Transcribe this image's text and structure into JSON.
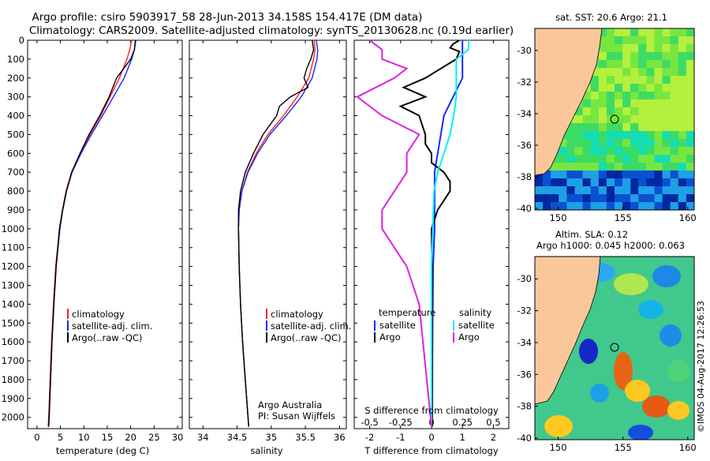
{
  "header": {
    "title_line1": "Argo profile: csiro 5903917_58 28-Jun-2013 34.158S 154.417E (DM data)",
    "title_line2": "Climatology: CARS2009. Satellite-adjusted climatology: synTS_20130628.nc (0.19d earlier)"
  },
  "footer": {
    "watermark": "©IMOS 04-Aug-2017 12:26:53",
    "credit_line1": "Argo Australia",
    "credit_line2": "PI: Susan Wijffels"
  },
  "colors": {
    "climatology": "#ff2020",
    "satellite": "#1428ff",
    "argo": "#000000",
    "salinity_satellite": "#00f0f0",
    "salinity_argo": "#e020e0",
    "land": "#f9c79a"
  },
  "chart_data": [
    {
      "id": "temperature",
      "type": "line",
      "xlabel": "temperature (deg C)",
      "ylabel": "",
      "xlim": [
        -2,
        31
      ],
      "ylim": [
        2060,
        0
      ],
      "xticks": [
        0,
        5,
        10,
        15,
        20,
        25,
        30
      ],
      "yticks": [
        0,
        100,
        200,
        300,
        400,
        500,
        600,
        700,
        800,
        900,
        1000,
        1100,
        1200,
        1300,
        1400,
        1500,
        1600,
        1700,
        1800,
        1900,
        2000
      ],
      "legend": [
        "climatology",
        "satellite-adj. clim.",
        "Argo(..raw -QC)"
      ],
      "series": [
        {
          "name": "climatology",
          "depth": [
            0,
            50,
            100,
            200,
            300,
            400,
            500,
            600,
            700,
            800,
            900,
            1000,
            1200,
            1400,
            1600,
            1800,
            2000,
            2050
          ],
          "values": [
            20.2,
            19.8,
            19.2,
            17.6,
            15.6,
            13.6,
            11.3,
            9.2,
            7.4,
            6.2,
            5.4,
            4.8,
            4.0,
            3.5,
            3.1,
            2.8,
            2.5,
            2.4
          ]
        },
        {
          "name": "satellite-adj. clim.",
          "depth": [
            0,
            50,
            100,
            200,
            300,
            400,
            500,
            600,
            700,
            800,
            900,
            1000,
            1200,
            1400,
            1600,
            1800,
            2000,
            2050
          ],
          "values": [
            21.1,
            20.8,
            20.2,
            18.6,
            16.3,
            14.0,
            11.6,
            9.4,
            7.5,
            6.3,
            5.5,
            4.9,
            4.1,
            3.6,
            3.2,
            2.9,
            2.6,
            2.5
          ]
        },
        {
          "name": "Argo(..raw -QC)",
          "depth": [
            0,
            50,
            100,
            200,
            300,
            400,
            500,
            600,
            700,
            800,
            900,
            1000,
            1200,
            1400,
            1600,
            1800,
            2000,
            2050
          ],
          "values": [
            21.0,
            20.8,
            20.0,
            17.0,
            15.4,
            13.4,
            11.1,
            9.2,
            7.4,
            6.3,
            5.5,
            4.8,
            4.1,
            3.6,
            3.2,
            2.9,
            2.6,
            2.5
          ]
        }
      ]
    },
    {
      "id": "salinity",
      "type": "line",
      "xlabel": "salinity",
      "xlim": [
        33.8,
        36.1
      ],
      "ylim": [
        2060,
        0
      ],
      "xticks": [
        34,
        34.5,
        35,
        35.5,
        36
      ],
      "legend": [
        "climatology",
        "satellite-adj. clim.",
        "Argo(..raw -QC)"
      ],
      "series": [
        {
          "name": "climatology",
          "depth": [
            0,
            50,
            100,
            200,
            300,
            400,
            500,
            600,
            700,
            800,
            900,
            1000,
            1200,
            1400,
            1600,
            1800,
            2000,
            2050
          ],
          "values": [
            35.63,
            35.64,
            35.62,
            35.55,
            35.38,
            35.18,
            34.95,
            34.78,
            34.65,
            34.57,
            34.53,
            34.52,
            34.53,
            34.55,
            34.58,
            34.62,
            34.66,
            34.67
          ]
        },
        {
          "name": "satellite-adj. clim.",
          "depth": [
            0,
            50,
            100,
            200,
            300,
            400,
            500,
            600,
            700,
            800,
            900,
            1000,
            1200,
            1400,
            1600,
            1800,
            2000,
            2050
          ],
          "values": [
            35.66,
            35.68,
            35.67,
            35.6,
            35.44,
            35.22,
            34.98,
            34.8,
            34.66,
            34.57,
            34.53,
            34.52,
            34.53,
            34.55,
            34.58,
            34.62,
            34.66,
            34.67
          ]
        },
        {
          "name": "Argo(..raw -QC)",
          "depth": [
            0,
            50,
            100,
            150,
            200,
            250,
            300,
            350,
            400,
            500,
            600,
            700,
            800,
            900,
            1000,
            1200,
            1400,
            1600,
            1800,
            2000,
            2050
          ],
          "values": [
            35.6,
            35.62,
            35.58,
            35.52,
            35.48,
            35.54,
            35.28,
            35.12,
            35.08,
            34.88,
            34.74,
            34.62,
            34.55,
            34.52,
            34.52,
            34.53,
            34.55,
            34.58,
            34.62,
            34.66,
            34.67
          ]
        }
      ]
    },
    {
      "id": "difference",
      "type": "line",
      "xlabel": "T difference from climatology",
      "xlabel_top": "S difference from climatology",
      "xlim": [
        -2.5,
        2.5
      ],
      "ylim": [
        2060,
        0
      ],
      "xticks": [
        -2,
        -1,
        0,
        1,
        2
      ],
      "xticks_top": [
        "-0.5",
        "-0.25",
        "0",
        "0.25",
        "0.5"
      ],
      "legend_title_left": "temperature",
      "legend_title_right": "salinity",
      "legend_left": [
        "satellite",
        "Argo"
      ],
      "legend_right": [
        "satellite",
        "Argo"
      ],
      "series": [
        {
          "name": "T satellite",
          "depth": [
            0,
            50,
            100,
            200,
            300,
            400,
            500,
            600,
            700,
            800,
            1000,
            1200,
            1600,
            2050
          ],
          "values": [
            1.0,
            1.0,
            1.0,
            1.0,
            0.7,
            0.4,
            0.3,
            0.2,
            0.1,
            0.1,
            0.1,
            0.05,
            0.03,
            0.02
          ]
        },
        {
          "name": "T Argo",
          "depth": [
            0,
            20,
            40,
            60,
            100,
            150,
            200,
            250,
            300,
            350,
            400,
            450,
            500,
            550,
            600,
            650,
            700,
            750,
            800,
            900,
            1000,
            1200,
            1600,
            2050
          ],
          "values": [
            0.9,
            0.7,
            0.6,
            0.9,
            0.8,
            0.3,
            -0.2,
            -0.9,
            -0.2,
            -1.0,
            -0.4,
            -0.3,
            -0.2,
            -0.2,
            0.0,
            0.0,
            0.4,
            0.6,
            0.6,
            0.2,
            0.0,
            0.02,
            0.02,
            0.02
          ]
        },
        {
          "name": "S satellite",
          "depth": [
            0,
            50,
            100,
            200,
            300,
            400,
            500,
            600,
            700,
            800,
            1000,
            1200,
            1600,
            2050
          ],
          "values": [
            0.3,
            0.3,
            0.2,
            0.2,
            0.2,
            0.18,
            0.15,
            0.1,
            0.05,
            0.02,
            0.01,
            0.0,
            0.0,
            0.0
          ]
        },
        {
          "name": "S Argo",
          "depth": [
            0,
            50,
            100,
            150,
            200,
            300,
            400,
            500,
            600,
            700,
            800,
            900,
            1000,
            1200,
            1400,
            2050
          ],
          "values": [
            -0.5,
            -0.4,
            -0.4,
            -0.2,
            -0.3,
            -0.6,
            -0.4,
            -0.1,
            -0.2,
            -0.2,
            -0.3,
            -0.4,
            -0.4,
            -0.2,
            -0.1,
            0.0
          ]
        }
      ]
    },
    {
      "id": "sst-map",
      "type": "heatmap",
      "title": "sat. SST: 20.6  Argo: 21.1",
      "xticks": [
        150,
        155,
        160
      ],
      "yticks": [
        -30,
        -32,
        -34,
        -36,
        -38,
        -40
      ],
      "xlim": [
        148.2,
        160.5
      ],
      "ylim": [
        -40.1,
        -28.6
      ],
      "argo_position": {
        "lon": 154.417,
        "lat": -34.158
      }
    },
    {
      "id": "sla-map",
      "type": "heatmap",
      "title_line1": "Altim. SLA: 0.12",
      "title_line2": "Argo h1000: 0.045 h2000: 0.063",
      "xticks": [
        150,
        155,
        160
      ],
      "yticks": [
        -30,
        -32,
        -34,
        -36,
        -38,
        -40
      ],
      "xlim": [
        148.2,
        160.5
      ],
      "ylim": [
        -40.1,
        -28.6
      ],
      "argo_position": {
        "lon": 154.417,
        "lat": -34.158
      }
    }
  ]
}
